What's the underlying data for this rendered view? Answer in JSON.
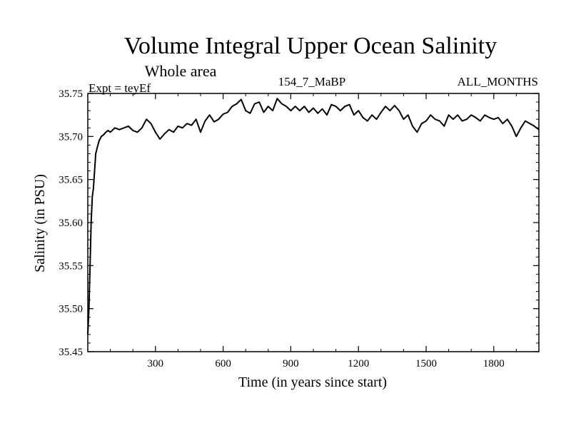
{
  "chart_data": {
    "type": "line",
    "title": "Volume Integral Upper Ocean Salinity",
    "subtitle": "Whole area",
    "experiment_label": "Expt = teyEf",
    "run_label": "154_7_MaBP",
    "period_label": "ALL_MONTHS",
    "xlabel": "Time (in years since start)",
    "ylabel": "Salinity (in PSU)",
    "xlim": [
      0,
      2000
    ],
    "ylim": [
      35.45,
      35.75
    ],
    "x_ticks": [
      300,
      600,
      900,
      1200,
      1500,
      1800
    ],
    "x_tick_labels": [
      "300",
      "600",
      "900",
      "1200",
      "1500",
      "1800"
    ],
    "y_ticks": [
      35.45,
      35.5,
      35.55,
      35.6,
      35.65,
      35.7,
      35.75
    ],
    "y_tick_labels": [
      "35.45",
      "35.50",
      "35.55",
      "35.60",
      "35.65",
      "35.70",
      "35.75"
    ],
    "grid": false,
    "series": [
      {
        "name": "Volume integral upper ocean salinity",
        "color": "#000000",
        "x": [
          0,
          5,
          10,
          15,
          20,
          25,
          30,
          35,
          40,
          50,
          60,
          70,
          80,
          90,
          100,
          120,
          140,
          160,
          180,
          200,
          220,
          240,
          260,
          280,
          300,
          320,
          340,
          360,
          380,
          400,
          420,
          440,
          460,
          480,
          500,
          520,
          540,
          560,
          580,
          600,
          620,
          640,
          660,
          680,
          700,
          720,
          740,
          760,
          780,
          800,
          820,
          840,
          860,
          880,
          900,
          920,
          940,
          960,
          980,
          1000,
          1020,
          1040,
          1060,
          1080,
          1100,
          1120,
          1140,
          1160,
          1180,
          1200,
          1220,
          1240,
          1260,
          1280,
          1300,
          1320,
          1340,
          1360,
          1380,
          1400,
          1420,
          1440,
          1460,
          1480,
          1500,
          1520,
          1540,
          1560,
          1580,
          1600,
          1620,
          1640,
          1660,
          1680,
          1700,
          1720,
          1740,
          1760,
          1780,
          1800,
          1820,
          1840,
          1860,
          1880,
          1900,
          1920,
          1940,
          1960,
          1980,
          2000
        ],
        "values": [
          35.47,
          35.5,
          35.55,
          35.6,
          35.63,
          35.64,
          35.66,
          35.68,
          35.685,
          35.695,
          35.7,
          35.702,
          35.705,
          35.707,
          35.705,
          35.71,
          35.708,
          35.71,
          35.712,
          35.707,
          35.705,
          35.71,
          35.72,
          35.715,
          35.705,
          35.697,
          35.703,
          35.708,
          35.705,
          35.712,
          35.71,
          35.715,
          35.713,
          35.72,
          35.705,
          35.718,
          35.725,
          35.717,
          35.72,
          35.726,
          35.728,
          35.735,
          35.738,
          35.743,
          35.73,
          35.727,
          35.738,
          35.74,
          35.728,
          35.735,
          35.73,
          35.744,
          35.738,
          35.735,
          35.73,
          35.735,
          35.73,
          35.735,
          35.728,
          35.733,
          35.727,
          35.732,
          35.725,
          35.737,
          35.735,
          35.73,
          35.735,
          35.737,
          35.725,
          35.73,
          35.722,
          35.718,
          35.725,
          35.72,
          35.728,
          35.735,
          35.73,
          35.736,
          35.73,
          35.72,
          35.725,
          35.712,
          35.705,
          35.715,
          35.718,
          35.725,
          35.72,
          35.718,
          35.712,
          35.725,
          35.72,
          35.725,
          35.718,
          35.72,
          35.725,
          35.722,
          35.718,
          35.725,
          35.722,
          35.72,
          35.722,
          35.715,
          35.72,
          35.712,
          35.7,
          35.71,
          35.718,
          35.715,
          35.712,
          35.708
        ]
      }
    ]
  }
}
